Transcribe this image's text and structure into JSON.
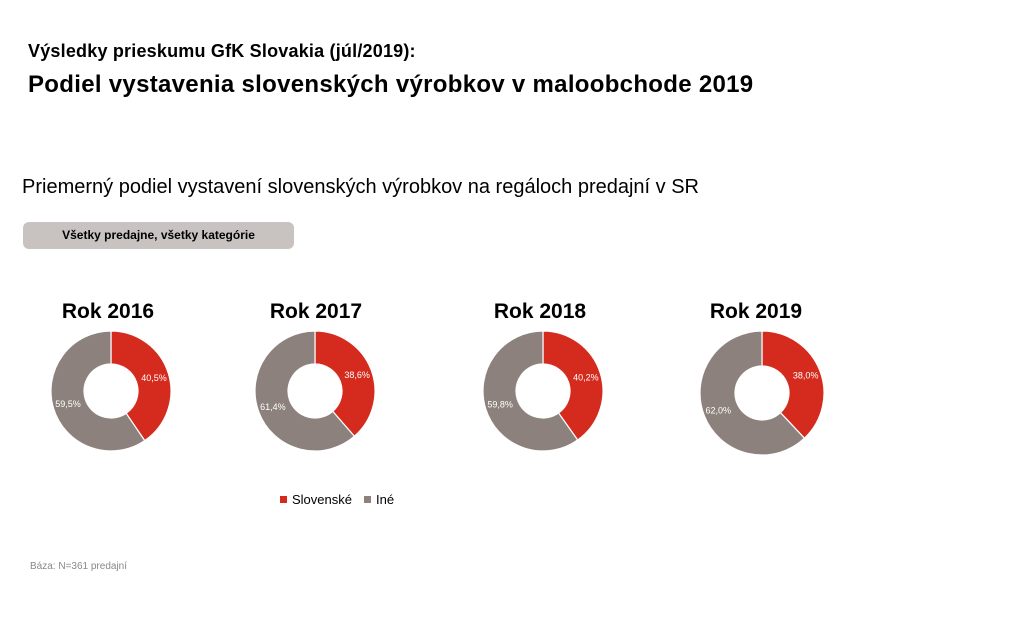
{
  "header": {
    "kicker": "Výsledky prieskumu GfK Slovakia (júl/2019):",
    "headline": "Podiel vystavenia slovenských výrobkov v maloobchode 2019"
  },
  "subtitle": "Priemerný podiel vystavení slovenských výrobkov na regáloch predajní v SR",
  "filter_label": "Všetky predajne, všetky kategórie",
  "colors": {
    "slovenske": "#d52b1e",
    "ine": "#8c817c",
    "label_text": "#ffffff"
  },
  "legend": [
    {
      "label": "Slovenské",
      "color": "#d52b1e"
    },
    {
      "label": "Iné",
      "color": "#8c817c"
    }
  ],
  "chart_data": [
    {
      "type": "pie",
      "title": "Rok 2016",
      "series": [
        {
          "name": "Slovenské",
          "value": 40.5,
          "label": "40,5%"
        },
        {
          "name": "Iné",
          "value": 59.5,
          "label": "59,5%"
        }
      ]
    },
    {
      "type": "pie",
      "title": "Rok 2017",
      "series": [
        {
          "name": "Slovenské",
          "value": 38.6,
          "label": "38,6%"
        },
        {
          "name": "Iné",
          "value": 61.4,
          "label": "61,4%"
        }
      ]
    },
    {
      "type": "pie",
      "title": "Rok 2018",
      "series": [
        {
          "name": "Slovenské",
          "value": 40.2,
          "label": "40,2%"
        },
        {
          "name": "Iné",
          "value": 59.8,
          "label": "59,8%"
        }
      ]
    },
    {
      "type": "pie",
      "title": "Rok 2019",
      "series": [
        {
          "name": "Slovenské",
          "value": 38.0,
          "label": "38,0%"
        },
        {
          "name": "Iné",
          "value": 62.0,
          "label": "62,0%"
        }
      ]
    }
  ],
  "footnote": "Báza: N=361 predajní"
}
